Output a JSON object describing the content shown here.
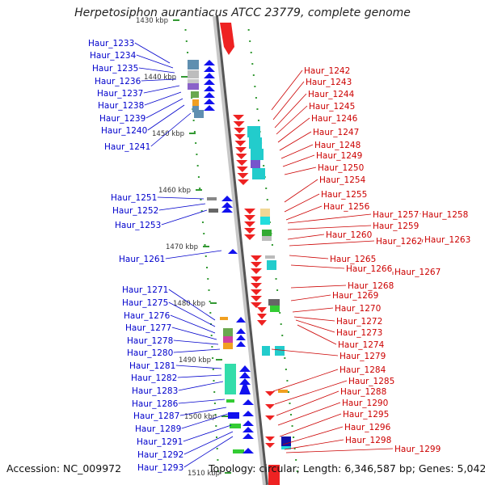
{
  "title": "Herpetosiphon aurantiacus ATCC 23779, complete genome",
  "accession": "Accession: NC_009972",
  "topology": "Topology: circular; Length: 6,346,587 bp; Genes: 5,042",
  "colors": {
    "left_label": "#0000cc",
    "right_label": "#cc0000",
    "backbone": "#999999",
    "plus_gene": "#ee2222",
    "minus_gene": "#1111ee",
    "tick": "#339933"
  },
  "kbp_ticks": [
    "1430 kbp",
    "1440 kbp",
    "1450 kbp",
    "1460 kbp",
    "1470 kbp",
    "1480 kbp",
    "1490 kbp",
    "1500 kbp",
    "1510 kbp"
  ],
  "left_genes": [
    "Haur_1233",
    "Haur_1234",
    "Haur_1235",
    "Haur_1236",
    "Haur_1237",
    "Haur_1238",
    "Haur_1239",
    "Haur_1240",
    "Haur_1241",
    "Haur_1251",
    "Haur_1252",
    "Haur_1253",
    "Haur_1261",
    "Haur_1271",
    "Haur_1275",
    "Haur_1276",
    "Haur_1277",
    "Haur_1278",
    "Haur_1280",
    "Haur_1281",
    "Haur_1282",
    "Haur_1283",
    "Haur_1286",
    "Haur_1287",
    "Haur_1289",
    "Haur_1291",
    "Haur_1292",
    "Haur_1293"
  ],
  "right_genes": [
    "Haur_1242",
    "Haur_1243",
    "Haur_1244",
    "Haur_1245",
    "Haur_1246",
    "Haur_1247",
    "Haur_1248",
    "Haur_1249",
    "Haur_1250",
    "Haur_1254",
    "Haur_1255",
    "Haur_1256",
    "Haur_1257",
    "Haur_1258",
    "Haur_1259",
    "Haur_1260",
    "Haur_1262",
    "Haur_1263",
    "Haur_1265",
    "Haur_1266",
    "Haur_1267",
    "Haur_1268",
    "Haur_1269",
    "Haur_1270",
    "Haur_1272",
    "Haur_1273",
    "Haur_1274",
    "Haur_1279",
    "Haur_1284",
    "Haur_1285",
    "Haur_1288",
    "Haur_1290",
    "Haur_1295",
    "Haur_1296",
    "Haur_1298",
    "Haur_1299"
  ]
}
